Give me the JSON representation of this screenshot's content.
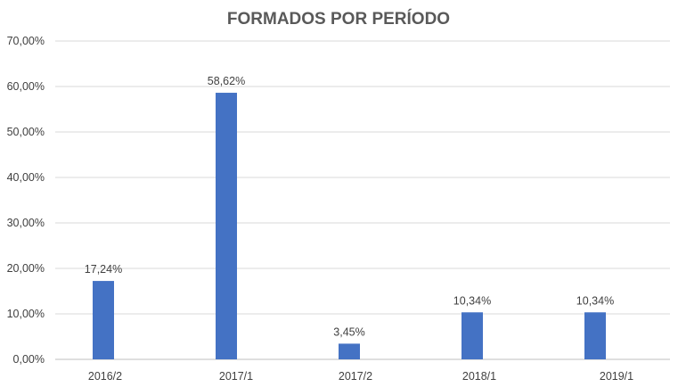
{
  "chart_data": {
    "type": "bar",
    "title": "FORMADOS POR PERÍODO",
    "xlabel": "",
    "ylabel": "",
    "categories": [
      "2016/2",
      "2017/1",
      "2017/2",
      "2018/1",
      "2019/1"
    ],
    "values": [
      17.24,
      58.62,
      3.45,
      10.34,
      10.34
    ],
    "data_labels": [
      "17,24%",
      "58,62%",
      "3,45%",
      "10,34%",
      "10,34%"
    ],
    "y_ticks": [
      "0,00%",
      "10,00%",
      "20,00%",
      "30,00%",
      "40,00%",
      "50,00%",
      "60,00%",
      "70,00%"
    ],
    "ylim": [
      0,
      70
    ],
    "grid": true,
    "legend": "none",
    "bar_color": "#4472c4"
  }
}
